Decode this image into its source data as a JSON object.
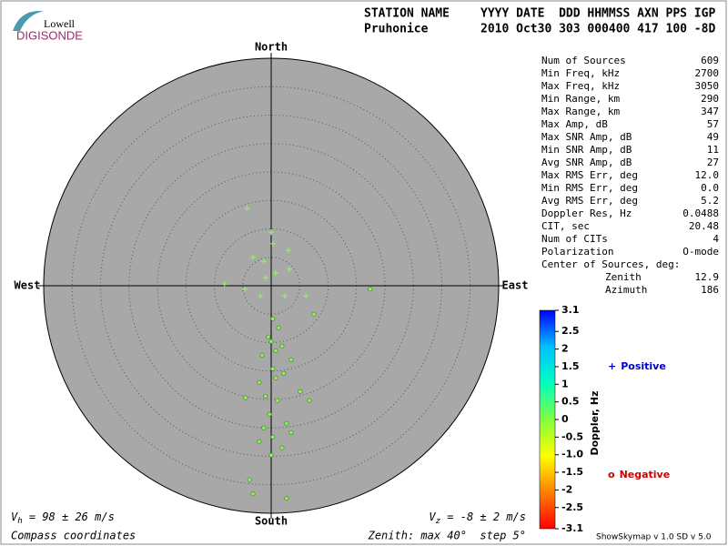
{
  "logo": {
    "top": "Lowell",
    "bottom": "DIGISONDE"
  },
  "header": {
    "labels": [
      "STATION NAME",
      "YYYY DATE  DDD HHMMSS AXN PPS IGP"
    ],
    "values": [
      "Pruhonice",
      "2010 Oct30 303 000400 417 100 -8D"
    ]
  },
  "stats": [
    {
      "label": "Num of Sources",
      "value": "609"
    },
    {
      "label": "Min Freq, kHz",
      "value": "2700"
    },
    {
      "label": "Max Freq, kHz",
      "value": "3050"
    },
    {
      "label": "Min Range, km",
      "value": "290"
    },
    {
      "label": "Max Range, km",
      "value": "347"
    },
    {
      "label": "Max Amp, dB",
      "value": "57"
    },
    {
      "label": "Max SNR Amp, dB",
      "value": "49"
    },
    {
      "label": "Min SNR Amp, dB",
      "value": "11"
    },
    {
      "label": "Avg SNR Amp, dB",
      "value": "27"
    },
    {
      "label": "Max RMS Err, deg",
      "value": "12.0"
    },
    {
      "label": "Min RMS Err, deg",
      "value": "0.0"
    },
    {
      "label": "Avg RMS Err, deg",
      "value": "5.2"
    },
    {
      "label": "Doppler Res, Hz",
      "value": "0.0488"
    },
    {
      "label": "CIT, sec",
      "value": "20.48"
    },
    {
      "label": "Num of CITs",
      "value": "4"
    },
    {
      "label": "Polarization",
      "value": "O-mode"
    },
    {
      "label": "Center of Sources, deg:"
    },
    {
      "label": "Zenith",
      "value": "12.9"
    },
    {
      "label": "Azimuth",
      "value": "186"
    }
  ],
  "footer": {
    "vh_symbol": "V",
    "vh_sub": "h",
    "vh_text": " = 98 ± 26 m/s",
    "vz_symbol": "V",
    "vz_sub": "z",
    "vz_text": " = -8 ± 2 m/s",
    "coords": "Compass coordinates",
    "zenith": "Zenith: max 40°  step 5°",
    "version": "ShowSkymap v 1.0  SD v 5.0"
  },
  "chart_data": {
    "type": "polar-scatter",
    "directions": {
      "north": "North",
      "south": "South",
      "west": "West",
      "east": "East"
    },
    "rlim": [
      0,
      40
    ],
    "rticks": [
      5,
      10,
      15,
      20,
      25,
      30,
      35,
      40
    ],
    "series": [
      {
        "name": "Positive",
        "marker": "+",
        "color": "#0000cc",
        "x": [
          -4.2,
          0,
          3.0,
          -3.2,
          -1.3,
          0.8,
          -8.2,
          -4.6,
          -1.9,
          2.4,
          6.1,
          0.3,
          3.2,
          -1.0
        ],
        "y": [
          13.6,
          9.4,
          6.2,
          5.0,
          4.3,
          2.2,
          0.3,
          -0.6,
          -1.8,
          -1.8,
          -1.8,
          7.4,
          2.9,
          1.4
        ]
      },
      {
        "name": "Negative",
        "marker": "o",
        "color": "#cc0000",
        "x": [
          17.4,
          7.5,
          0.3,
          1.3,
          -0.5,
          1.9,
          -1.6,
          3.5,
          0.3,
          -4.5,
          -2.1,
          5.1,
          1.1,
          -0.3,
          2.7,
          -1.3,
          0.3,
          3.5,
          1.9,
          -2.1,
          0,
          6.7,
          -3.8,
          -3.2,
          2.7,
          0.8,
          -1.0,
          2.2,
          0,
          0.8
        ],
        "y": [
          -0.6,
          -5.0,
          -5.8,
          -7.4,
          -9.0,
          -10.6,
          -12.2,
          -13.0,
          -14.6,
          -19.7,
          -17.0,
          -18.6,
          -20.2,
          -22.6,
          -24.2,
          -25.0,
          -26.6,
          -25.8,
          -28.5,
          -27.4,
          -29.8,
          -20.2,
          -34.1,
          -36.6,
          -37.4,
          -16.2,
          -19.4,
          -15.4,
          -9.8,
          -11.4
        ]
      }
    ],
    "point_color": "#90f060",
    "colorbar": {
      "label": "Doppler, Hz",
      "lim": [
        -3.1,
        3.1
      ],
      "colors": [
        "#ff0000",
        "#ff8000",
        "#ffff00",
        "#80ff40",
        "#00ffc0",
        "#00c0ff",
        "#0000ff"
      ],
      "ticks": [
        3.1,
        2.5,
        2,
        1.5,
        1,
        0.5,
        0,
        -0.5,
        {
          "value": -1.0,
          "label": "-1.0"
        },
        -1.5,
        -2,
        -2.5,
        -3.1
      ]
    }
  }
}
